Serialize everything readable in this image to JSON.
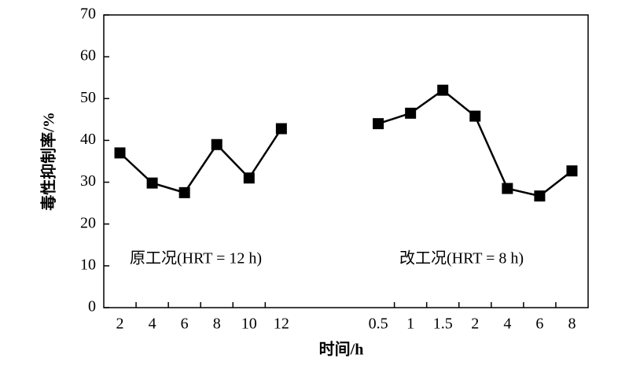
{
  "chart_data": {
    "type": "line",
    "x_label": "时间/h",
    "y_label": "毒性抑制率/%",
    "categories": [
      "2",
      "4",
      "6",
      "8",
      "10",
      "12",
      null,
      null,
      "0.5",
      "1",
      "1.5",
      "2",
      "4",
      "6",
      "8"
    ],
    "values": [
      37,
      29.8,
      27.5,
      39,
      31,
      42.8,
      null,
      null,
      44,
      46.5,
      52,
      45.8,
      28.5,
      26.7,
      32.7
    ],
    "color": "#000000",
    "ylim": [
      0,
      70
    ],
    "yticks": [
      0,
      10,
      20,
      30,
      40,
      50,
      60,
      70
    ],
    "annotations": [
      "原工况(HRT = 12 h)",
      "改工况(HRT = 8 h)"
    ]
  }
}
